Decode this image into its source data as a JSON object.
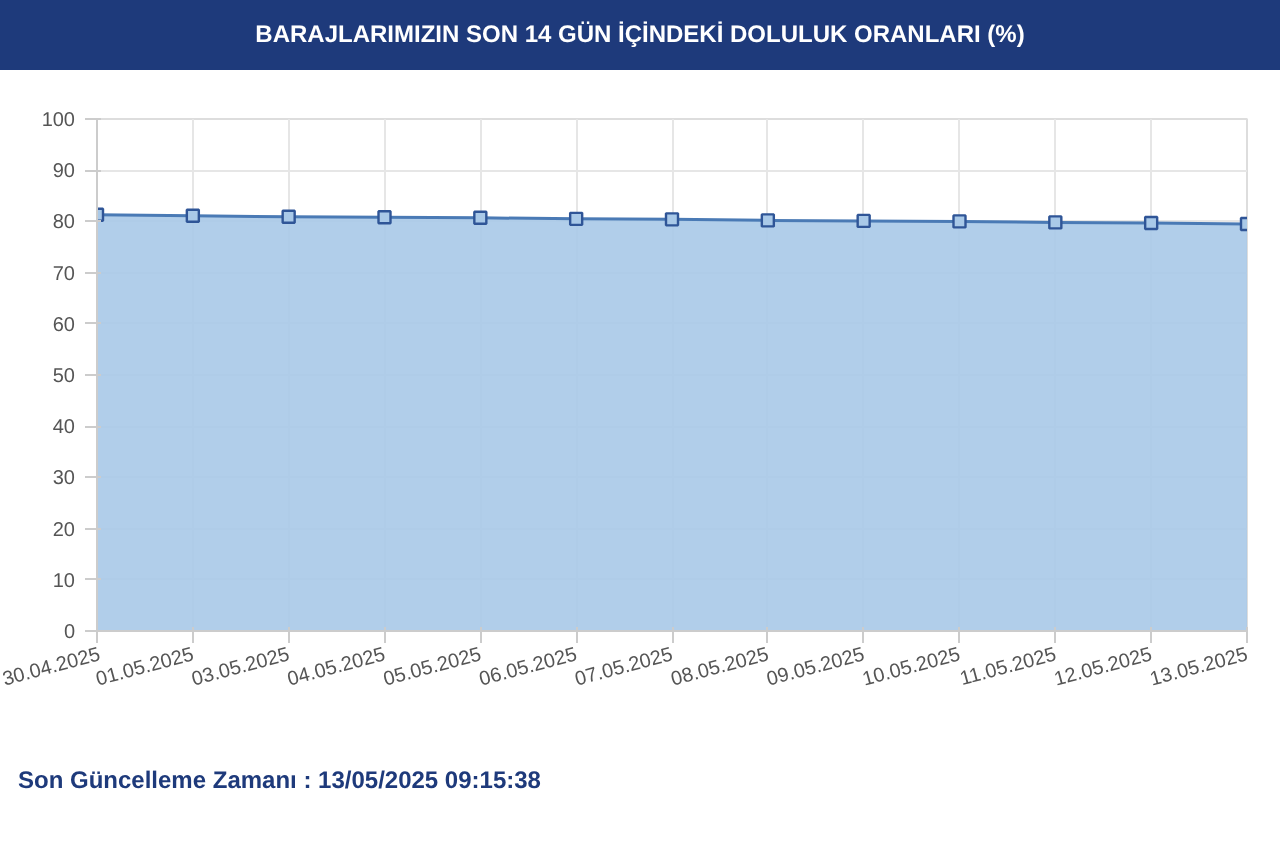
{
  "chart_data": {
    "type": "area",
    "title": "BARAJLARIMIZIN SON 14 GÜN İÇİNDEKİ DOLULUK ORANLARI (%)",
    "categories": [
      "30.04.2025",
      "01.05.2025",
      "03.05.2025",
      "04.05.2025",
      "05.05.2025",
      "06.05.2025",
      "07.05.2025",
      "08.05.2025",
      "09.05.2025",
      "10.05.2025",
      "11.05.2025",
      "12.05.2025",
      "13.05.2025"
    ],
    "series": [
      {
        "color": "#a9c9e8",
        "values": [
          81.3,
          81.1,
          80.9,
          80.8,
          80.7,
          80.5,
          80.4,
          80.2,
          80.1,
          80.0,
          79.8,
          79.7,
          79.5
        ]
      }
    ],
    "ylim": [
      0,
      100
    ],
    "yticks": [
      0,
      10,
      20,
      30,
      40,
      50,
      60,
      70,
      80,
      90,
      100
    ],
    "grid": true,
    "marker": "square",
    "annotations": [
      "Son Güncelleme Zamanı : 13/05/2025 09:15:38"
    ]
  }
}
